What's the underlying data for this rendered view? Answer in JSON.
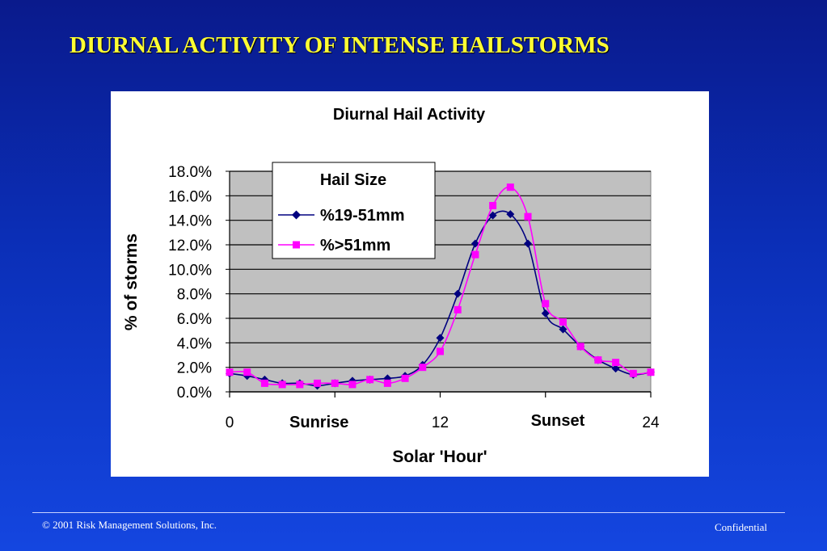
{
  "slide": {
    "title": "DIURNAL ACTIVITY OF INTENSE HAILSTORMS",
    "footer_left": "© 2001 Risk Management Solutions, Inc.",
    "footer_right": "Confidential"
  },
  "colors": {
    "title": "#ffff33",
    "plot_background": "#c0c0c0",
    "series_19_51": "#000080",
    "series_gt51": "#ff00ff"
  },
  "chart_data": {
    "type": "line",
    "title": "Diurnal Hail Activity",
    "xlabel": "Solar 'Hour'",
    "ylabel": "% of storms",
    "xlim": [
      0,
      24
    ],
    "ylim": [
      0,
      18
    ],
    "y_ticks": [
      "0.0%",
      "2.0%",
      "4.0%",
      "6.0%",
      "8.0%",
      "10.0%",
      "12.0%",
      "14.0%",
      "16.0%",
      "18.0%"
    ],
    "y_tick_values": [
      0,
      2,
      4,
      6,
      8,
      10,
      12,
      14,
      16,
      18
    ],
    "x_ticks": [
      "0",
      "12",
      "24"
    ],
    "x_tick_values": [
      0,
      12,
      24
    ],
    "x_minor_tick_values": [
      6,
      18
    ],
    "x_annotations": [
      {
        "text": "Sunrise",
        "x": 5.1
      },
      {
        "text": "Sunset",
        "x": 18.7
      }
    ],
    "grid": "horizontal",
    "legend": {
      "title": "Hail Size",
      "placement": "top-left"
    },
    "x": [
      0,
      1,
      2,
      3,
      4,
      5,
      6,
      7,
      8,
      9,
      10,
      11,
      12,
      13,
      14,
      15,
      16,
      17,
      18,
      19,
      20,
      21,
      22,
      23,
      24
    ],
    "series": [
      {
        "name": "%19-51mm",
        "marker": "diamond",
        "color": "#000080",
        "values": [
          1.5,
          1.3,
          1.0,
          0.7,
          0.7,
          0.5,
          0.7,
          0.9,
          1.0,
          1.1,
          1.3,
          2.2,
          4.4,
          8.0,
          12.1,
          14.4,
          14.5,
          12.1,
          6.4,
          5.1,
          3.7,
          2.6,
          1.9,
          1.4,
          1.6
        ]
      },
      {
        "name": "%>51mm",
        "marker": "square",
        "color": "#ff00ff",
        "values": [
          1.6,
          1.6,
          0.7,
          0.6,
          0.6,
          0.7,
          0.7,
          0.6,
          1.0,
          0.7,
          1.1,
          2.0,
          3.3,
          6.7,
          11.2,
          15.2,
          16.7,
          14.3,
          7.2,
          5.7,
          3.7,
          2.6,
          2.4,
          1.5,
          1.6
        ]
      }
    ]
  }
}
